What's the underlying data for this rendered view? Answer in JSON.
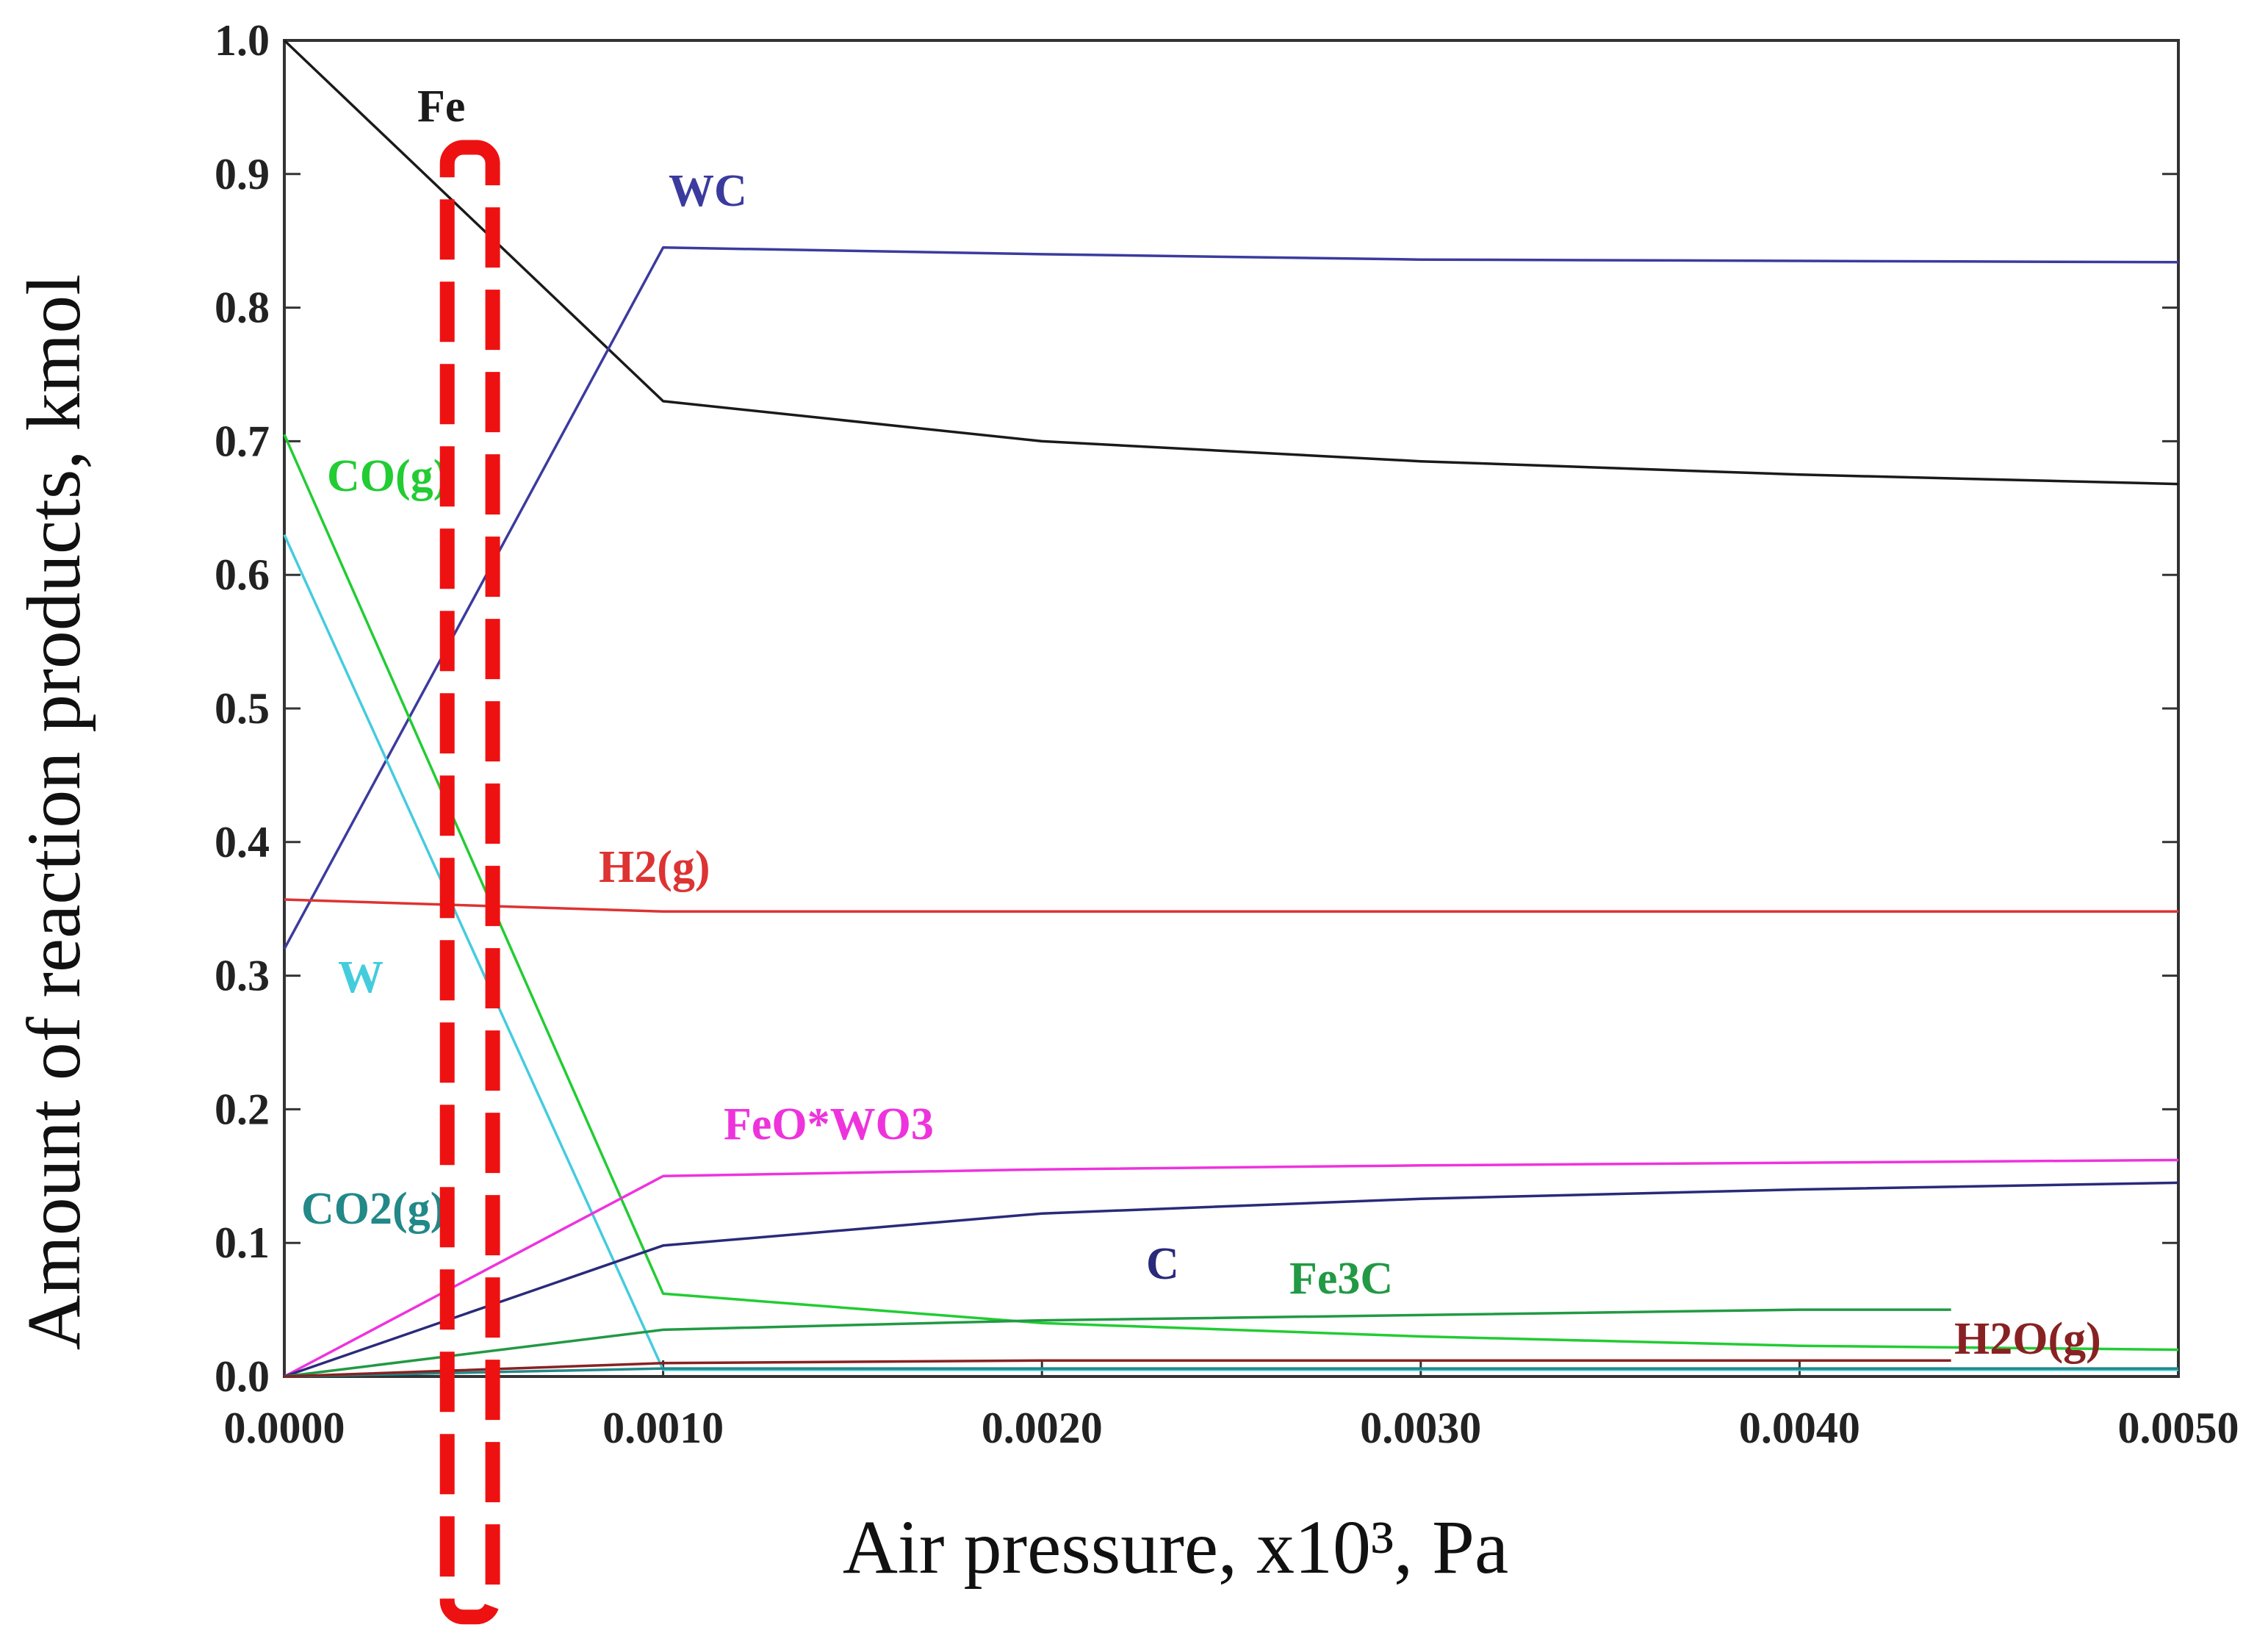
{
  "chart_data": {
    "type": "line",
    "title": "",
    "xlabel": "Air pressure, x10³, Pa",
    "ylabel": "Amount of reaction products, kmol",
    "xlim": [
      0,
      0.005
    ],
    "ylim": [
      0,
      1.0
    ],
    "x_tick_labels": [
      "0.0000",
      "0.0010",
      "0.0020",
      "0.0030",
      "0.0040",
      "0.0050"
    ],
    "y_tick_labels": [
      "0.0",
      "0.1",
      "0.2",
      "0.3",
      "0.4",
      "0.5",
      "0.6",
      "0.7",
      "0.8",
      "0.9",
      "1.0"
    ],
    "series": [
      {
        "name": "Fe",
        "label": "Fe",
        "color": "#1a1a1a",
        "x": [
          0,
          0.001,
          0.002,
          0.003,
          0.004,
          0.005
        ],
        "values": [
          1.0,
          0.73,
          0.7,
          0.685,
          0.675,
          0.668
        ]
      },
      {
        "name": "WC",
        "label": "WC",
        "color": "#3b3b9e",
        "x": [
          0,
          0.001,
          0.002,
          0.003,
          0.004,
          0.005
        ],
        "values": [
          0.32,
          0.845,
          0.84,
          0.836,
          0.835,
          0.834
        ]
      },
      {
        "name": "CO(g)",
        "label": "CO(g)",
        "color": "#22cc33",
        "x": [
          0,
          0.001,
          0.002,
          0.003,
          0.004,
          0.005
        ],
        "values": [
          0.705,
          0.062,
          0.04,
          0.03,
          0.023,
          0.02
        ]
      },
      {
        "name": "W",
        "label": "W",
        "color": "#44ccdd",
        "x": [
          0,
          0.001,
          0.002,
          0.005
        ],
        "values": [
          0.63,
          0.005,
          0.005,
          0.005
        ]
      },
      {
        "name": "H2(g)",
        "label": "H2(g)",
        "color": "#dd3333",
        "x": [
          0,
          0.001,
          0.002,
          0.003,
          0.004,
          0.005
        ],
        "values": [
          0.357,
          0.348,
          0.348,
          0.348,
          0.348,
          0.348
        ]
      },
      {
        "name": "FeO*WO3",
        "label": "FeO*WO3",
        "color": "#ee33dd",
        "x": [
          0,
          0.001,
          0.002,
          0.003,
          0.004,
          0.005
        ],
        "values": [
          0.0,
          0.15,
          0.155,
          0.158,
          0.16,
          0.162
        ]
      },
      {
        "name": "C",
        "label": "C",
        "color": "#2a2a7a",
        "x": [
          0,
          0.001,
          0.002,
          0.003,
          0.004,
          0.005
        ],
        "values": [
          0.0,
          0.098,
          0.122,
          0.133,
          0.14,
          0.145
        ]
      },
      {
        "name": "Fe3C",
        "label": "Fe3C",
        "color": "#229944",
        "x": [
          0,
          0.001,
          0.002,
          0.003,
          0.004,
          0.0044
        ],
        "values": [
          0.0,
          0.035,
          0.042,
          0.046,
          0.05,
          0.05
        ]
      },
      {
        "name": "CO2(g)",
        "label": "CO2(g)",
        "color": "#228888",
        "x": [
          0,
          0.001,
          0.002,
          0.005
        ],
        "values": [
          0.0,
          0.006,
          0.006,
          0.006
        ]
      },
      {
        "name": "H2O(g)",
        "label": "H2O(g)",
        "color": "#882222",
        "x": [
          0,
          0.001,
          0.002,
          0.003,
          0.004,
          0.0044
        ],
        "values": [
          0.0,
          0.01,
          0.012,
          0.012,
          0.012,
          0.012
        ]
      }
    ],
    "annotations": [
      {
        "type": "dashed-rounded-rectangle",
        "color": "#ee1111",
        "x_range": [
          0.00043,
          0.00055
        ],
        "y_range": [
          -0.18,
          0.92
        ]
      }
    ]
  }
}
